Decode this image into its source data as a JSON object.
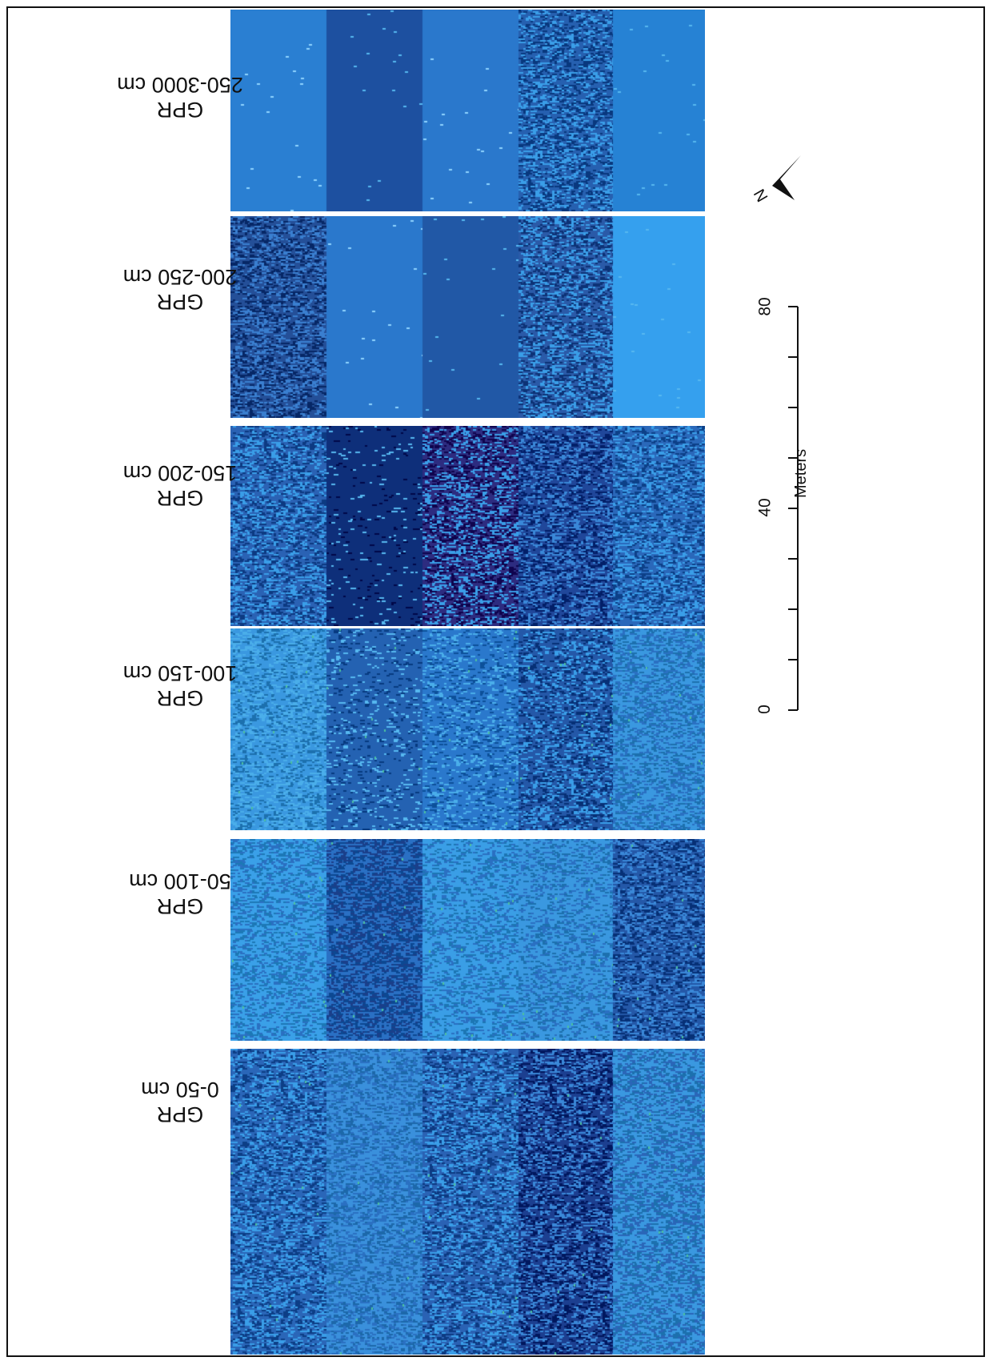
{
  "panels": [
    {
      "line1": "GPR",
      "line2": "250-3000 cm"
    },
    {
      "line1": "GPR",
      "line2": "200-250 cm"
    },
    {
      "line1": "GPR",
      "line2": "150-200 cm"
    },
    {
      "line1": "GPR",
      "line2": "100-150 cm"
    },
    {
      "line1": "GPR",
      "line2": "50-100 cm"
    },
    {
      "line1": "GPR",
      "line2": "0-50 cm"
    }
  ],
  "scale": {
    "title": "Meters",
    "ticks": [
      "0",
      "40",
      "80"
    ]
  },
  "north": {
    "label": "N",
    "icon": "north-arrow-icon"
  },
  "colors": {
    "deep": "#0a2a6e",
    "dark": "#1f4f9a",
    "mid": "#2a6fc4",
    "light": "#3a9ee8",
    "bright": "#56b8f0",
    "accent": "#4cc0a0"
  }
}
